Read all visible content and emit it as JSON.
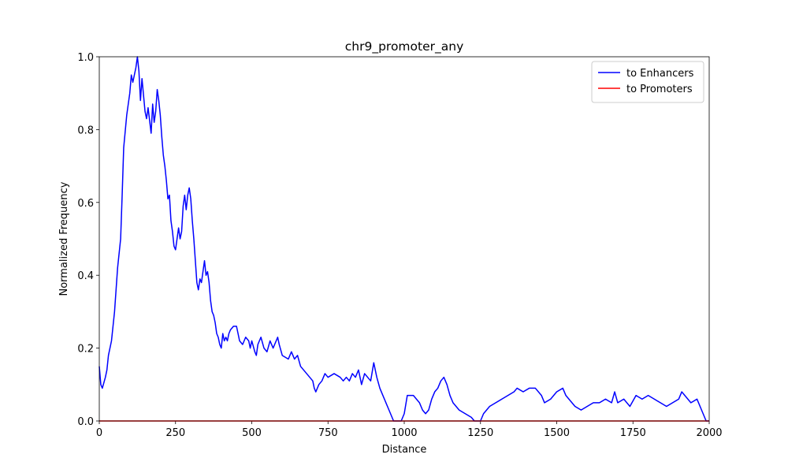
{
  "chart_data": {
    "type": "line",
    "title": "chr9_promoter_any",
    "xlabel": "Distance",
    "ylabel": "Normalized Frequency",
    "xlim": [
      0,
      2000
    ],
    "ylim": [
      0,
      1
    ],
    "xticks": [
      0,
      250,
      500,
      750,
      1000,
      1250,
      1500,
      1750,
      2000
    ],
    "yticks": [
      {
        "value": 0,
        "label": "0.0"
      },
      0.2,
      0.4,
      0.6,
      0.8,
      {
        "value": 1,
        "label": "1.0"
      }
    ],
    "grid": false,
    "legend": "upper right",
    "series": [
      {
        "name": "to Enhancers",
        "color": "#0000ff",
        "x": [
          0,
          5,
          10,
          20,
          25,
          30,
          40,
          50,
          60,
          70,
          75,
          80,
          90,
          100,
          105,
          110,
          120,
          125,
          130,
          135,
          140,
          150,
          155,
          160,
          170,
          175,
          180,
          185,
          190,
          195,
          200,
          205,
          210,
          215,
          220,
          225,
          230,
          235,
          240,
          245,
          250,
          255,
          260,
          265,
          270,
          275,
          280,
          285,
          290,
          295,
          300,
          305,
          310,
          315,
          320,
          325,
          330,
          335,
          340,
          345,
          350,
          355,
          360,
          365,
          370,
          375,
          380,
          385,
          390,
          395,
          400,
          405,
          410,
          415,
          420,
          425,
          430,
          440,
          450,
          455,
          460,
          470,
          480,
          490,
          495,
          500,
          510,
          515,
          520,
          530,
          540,
          550,
          560,
          570,
          575,
          585,
          590,
          600,
          620,
          630,
          640,
          650,
          660,
          670,
          680,
          690,
          700,
          705,
          710,
          720,
          730,
          740,
          750,
          770,
          790,
          800,
          810,
          820,
          830,
          840,
          850,
          860,
          870,
          880,
          890,
          900,
          910,
          920,
          930,
          940,
          950,
          960,
          965,
          990,
          1000,
          1010,
          1030,
          1050,
          1060,
          1070,
          1080,
          1090,
          1100,
          1110,
          1120,
          1130,
          1140,
          1150,
          1160,
          1170,
          1180,
          1200,
          1220,
          1230,
          1250,
          1260,
          1280,
          1300,
          1320,
          1340,
          1360,
          1370,
          1390,
          1410,
          1430,
          1450,
          1460,
          1480,
          1500,
          1520,
          1530,
          1550,
          1560,
          1580,
          1600,
          1620,
          1640,
          1660,
          1680,
          1690,
          1700,
          1720,
          1740,
          1760,
          1780,
          1800,
          1820,
          1840,
          1860,
          1880,
          1900,
          1910,
          1920,
          1940,
          1960,
          1980,
          1990,
          2000
        ],
        "values": [
          0.15,
          0.1,
          0.09,
          0.12,
          0.14,
          0.18,
          0.22,
          0.3,
          0.42,
          0.5,
          0.62,
          0.75,
          0.84,
          0.9,
          0.95,
          0.93,
          0.97,
          1.0,
          0.96,
          0.88,
          0.94,
          0.85,
          0.83,
          0.86,
          0.79,
          0.87,
          0.82,
          0.85,
          0.91,
          0.88,
          0.84,
          0.78,
          0.73,
          0.7,
          0.66,
          0.61,
          0.62,
          0.55,
          0.52,
          0.48,
          0.47,
          0.5,
          0.53,
          0.5,
          0.52,
          0.59,
          0.62,
          0.58,
          0.62,
          0.64,
          0.61,
          0.55,
          0.5,
          0.44,
          0.38,
          0.36,
          0.39,
          0.38,
          0.41,
          0.44,
          0.4,
          0.41,
          0.38,
          0.33,
          0.3,
          0.29,
          0.27,
          0.24,
          0.23,
          0.21,
          0.2,
          0.24,
          0.22,
          0.23,
          0.22,
          0.24,
          0.25,
          0.26,
          0.26,
          0.24,
          0.22,
          0.21,
          0.23,
          0.22,
          0.2,
          0.22,
          0.19,
          0.18,
          0.21,
          0.23,
          0.2,
          0.19,
          0.22,
          0.2,
          0.21,
          0.23,
          0.21,
          0.18,
          0.17,
          0.19,
          0.17,
          0.18,
          0.15,
          0.14,
          0.13,
          0.12,
          0.11,
          0.09,
          0.08,
          0.1,
          0.11,
          0.13,
          0.12,
          0.13,
          0.12,
          0.11,
          0.12,
          0.11,
          0.13,
          0.12,
          0.14,
          0.1,
          0.13,
          0.12,
          0.11,
          0.16,
          0.12,
          0.09,
          0.07,
          0.05,
          0.03,
          0.01,
          0,
          0,
          0.02,
          0.07,
          0.07,
          0.05,
          0.03,
          0.02,
          0.03,
          0.06,
          0.08,
          0.09,
          0.11,
          0.12,
          0.1,
          0.07,
          0.05,
          0.04,
          0.03,
          0.02,
          0.01,
          0,
          0,
          0.02,
          0.04,
          0.05,
          0.06,
          0.07,
          0.08,
          0.09,
          0.08,
          0.09,
          0.09,
          0.07,
          0.05,
          0.06,
          0.08,
          0.09,
          0.07,
          0.05,
          0.04,
          0.03,
          0.04,
          0.05,
          0.05,
          0.06,
          0.05,
          0.08,
          0.05,
          0.06,
          0.04,
          0.07,
          0.06,
          0.07,
          0.06,
          0.05,
          0.04,
          0.05,
          0.06,
          0.08,
          0.07,
          0.05,
          0.06,
          0.02,
          0,
          0
        ]
      },
      {
        "name": "to Promoters",
        "color": "#ff0000",
        "x": [
          0,
          2000
        ],
        "values": [
          0,
          0
        ]
      }
    ]
  }
}
